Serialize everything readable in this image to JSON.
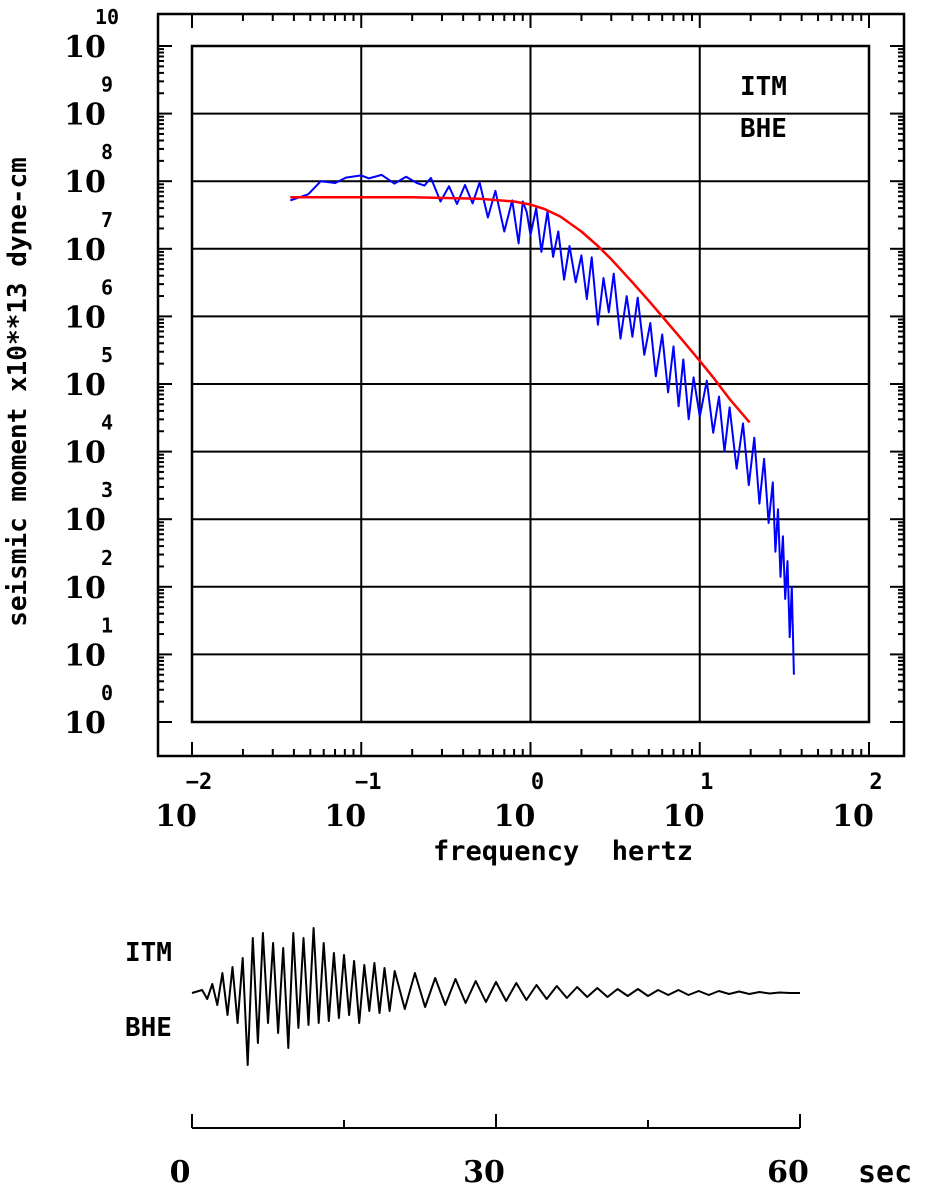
{
  "chart_data": [
    {
      "type": "line",
      "x_scale": "log",
      "y_scale": "log",
      "xlabel": "frequency  hertz",
      "ylabel": "seismic moment x10**13 dyne-cm",
      "xlim": [
        0.01,
        100
      ],
      "ylim": [
        1,
        10000000000
      ],
      "x_ticks": [
        {
          "exp": "−2",
          "base": "10"
        },
        {
          "exp": "−1",
          "base": "10"
        },
        {
          "exp": "0",
          "base": "10"
        },
        {
          "exp": "1",
          "base": "10"
        },
        {
          "exp": "2",
          "base": "10"
        }
      ],
      "y_ticks": [
        {
          "exp": "10",
          "base": "10"
        },
        {
          "exp": "9",
          "base": "10"
        },
        {
          "exp": "8",
          "base": "10"
        },
        {
          "exp": "7",
          "base": "10"
        },
        {
          "exp": "6",
          "base": "10"
        },
        {
          "exp": "5",
          "base": "10"
        },
        {
          "exp": "4",
          "base": "10"
        },
        {
          "exp": "3",
          "base": "10"
        },
        {
          "exp": "2",
          "base": "10"
        },
        {
          "exp": "1",
          "base": "10"
        },
        {
          "exp": "0",
          "base": "10"
        }
      ],
      "grid": true,
      "annotations": [
        "ITM",
        "BHE"
      ],
      "series": [
        {
          "color": "#0000ff",
          "x": [
            0.0381,
            0.0486,
            0.0577,
            0.0703,
            0.0811,
            0.1,
            0.111,
            0.132,
            0.157,
            0.184,
            0.213,
            0.236,
            0.258,
            0.294,
            0.33,
            0.368,
            0.41,
            0.455,
            0.5,
            0.56,
            0.62,
            0.7,
            0.78,
            0.85,
            0.9,
            0.95,
            1.0,
            1.08,
            1.16,
            1.26,
            1.36,
            1.46,
            1.58,
            1.7,
            1.85,
            2.0,
            2.15,
            2.3,
            2.5,
            2.7,
            2.9,
            3.1,
            3.4,
            3.7,
            4.0,
            4.3,
            4.7,
            5.1,
            5.5,
            6.0,
            6.5,
            7.0,
            7.5,
            8.0,
            8.6,
            9.2,
            10.0,
            11.0,
            12.0,
            13.0,
            14.0,
            15.0,
            16.5,
            18.0,
            19.5,
            21.0,
            22.5,
            24.0,
            25.5,
            27.0,
            28.0,
            29.0,
            30.0,
            31.0,
            32.0,
            33.0,
            34.0,
            35.0,
            36.0
          ],
          "y": [
            52000000,
            64000000,
            100000000,
            94000000,
            113000000,
            122000000,
            110000000,
            124000000,
            92000000,
            116000000,
            94000000,
            86000000,
            112000000,
            50000000,
            84000000,
            46000000,
            88000000,
            47000000,
            96000000,
            29000000,
            72000000,
            18000000,
            52000000,
            12000000,
            50000000,
            35000000,
            16000000,
            40000000,
            9000000,
            36000000,
            7600000,
            18000000,
            3500000,
            11000000,
            3200000,
            8000000,
            1800000,
            7500000,
            750000,
            3700000,
            1150000,
            4300000,
            470000,
            2000000,
            500000,
            1900000,
            270000,
            800000,
            130000,
            540000,
            75000,
            360000,
            47000,
            230000,
            30000,
            125000,
            33000,
            112000,
            19000,
            65000,
            10000,
            45000,
            5600,
            26000,
            3200,
            16000,
            1700,
            7800,
            880,
            3500,
            330,
            1400,
            140,
            560,
            66,
            240,
            18,
            100,
            5
          ]
        },
        {
          "color": "#ff0000",
          "x": [
            0.0381,
            0.05,
            0.1,
            0.2,
            0.5,
            0.8,
            1.0,
            1.2,
            1.5,
            2.0,
            2.5,
            3.0,
            4.0,
            5.0,
            6.0,
            8.0,
            10.0,
            12.0,
            15.0,
            19.7
          ],
          "y": [
            58000000,
            58000000,
            58000000,
            58000000,
            55000000,
            50000000,
            45000000,
            39000000,
            30000000,
            18000000,
            11000000,
            7000000,
            3200000,
            1700000,
            1000000,
            430000,
            220000,
            125000,
            60000,
            27000
          ]
        }
      ]
    },
    {
      "type": "line",
      "xlabel": "sec",
      "xlim": [
        0,
        60
      ],
      "x_ticks": [
        "0",
        "30",
        "60"
      ],
      "annotations": [
        "ITM",
        "BHE"
      ],
      "series": [
        {
          "color": "#000000",
          "x": [
            0,
            1,
            1.5,
            2,
            2.5,
            3,
            3.5,
            4,
            4.5,
            5,
            5.5,
            6,
            6.5,
            7,
            7.5,
            8,
            8.5,
            9,
            9.5,
            10,
            10.5,
            11,
            11.5,
            12,
            12.5,
            13,
            13.5,
            14,
            14.5,
            15,
            15.5,
            16,
            16.5,
            17,
            17.5,
            18,
            18.5,
            19,
            19.5,
            20,
            21,
            22,
            23,
            24,
            25,
            26,
            27,
            28,
            29,
            30,
            31,
            32,
            33,
            34,
            35,
            36,
            37,
            38,
            39,
            40,
            41,
            42,
            43,
            44,
            45,
            46,
            47,
            48,
            49,
            50,
            51,
            52,
            53,
            54,
            55,
            56,
            57,
            58,
            59,
            60
          ],
          "y": [
            0,
            0.03,
            -0.06,
            0.09,
            -0.12,
            0.2,
            -0.22,
            0.26,
            -0.3,
            0.35,
            -0.72,
            0.55,
            -0.5,
            0.6,
            -0.3,
            0.5,
            -0.4,
            0.45,
            -0.55,
            0.6,
            -0.35,
            0.55,
            -0.32,
            0.65,
            -0.3,
            0.5,
            -0.28,
            0.4,
            -0.25,
            0.38,
            -0.22,
            0.32,
            -0.3,
            0.28,
            -0.18,
            0.3,
            -0.2,
            0.25,
            -0.18,
            0.22,
            -0.16,
            0.2,
            -0.14,
            0.15,
            -0.12,
            0.14,
            -0.1,
            0.12,
            -0.09,
            0.11,
            -0.08,
            0.1,
            -0.07,
            0.08,
            -0.06,
            0.07,
            -0.05,
            0.06,
            -0.04,
            0.05,
            -0.04,
            0.04,
            -0.03,
            0.04,
            -0.03,
            0.03,
            -0.02,
            0.03,
            -0.02,
            0.02,
            -0.02,
            0.02,
            -0.01,
            0.015,
            -0.01,
            0.01,
            -0.005,
            0.005,
            0,
            0
          ]
        }
      ]
    }
  ]
}
